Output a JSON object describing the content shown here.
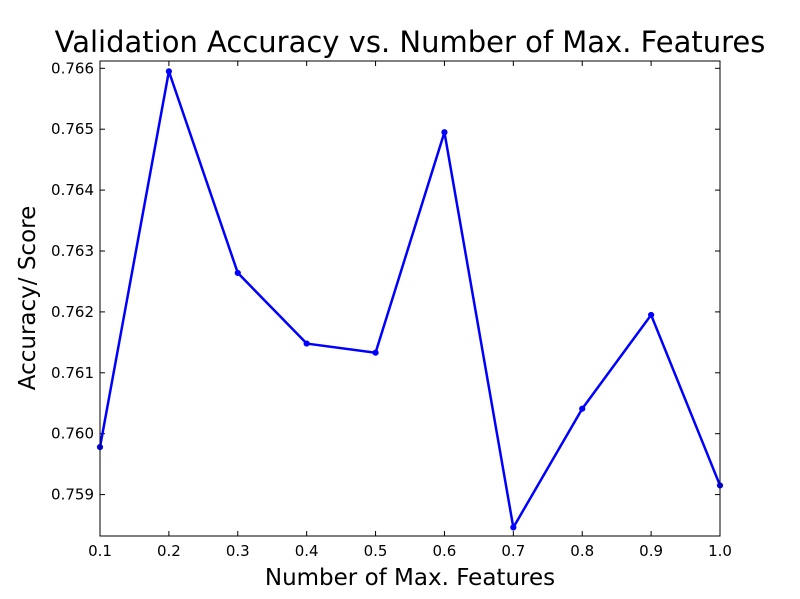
{
  "chart_data": {
    "type": "line",
    "title": "Validation Accuracy vs. Number of Max. Features",
    "xlabel": "Number of Max. Features",
    "ylabel": "Accuracy/ Score",
    "xlim": [
      0.1,
      1.0
    ],
    "ylim": [
      0.75832,
      0.76612
    ],
    "xticks": [
      "0.1",
      "0.2",
      "0.3",
      "0.4",
      "0.5",
      "0.6",
      "0.7",
      "0.8",
      "0.9",
      "1.0"
    ],
    "yticks": [
      "0.759",
      "0.760",
      "0.761",
      "0.762",
      "0.763",
      "0.764",
      "0.765",
      "0.766"
    ],
    "grid": false,
    "series": [
      {
        "color": "#0000ff",
        "x": [
          0.1,
          0.2,
          0.3,
          0.4,
          0.5,
          0.6,
          0.7,
          0.8,
          0.9,
          1.0
        ],
        "y": [
          0.75978,
          0.76595,
          0.76264,
          0.76148,
          0.76133,
          0.76495,
          0.75846,
          0.76041,
          0.76195,
          0.75915
        ]
      }
    ]
  }
}
